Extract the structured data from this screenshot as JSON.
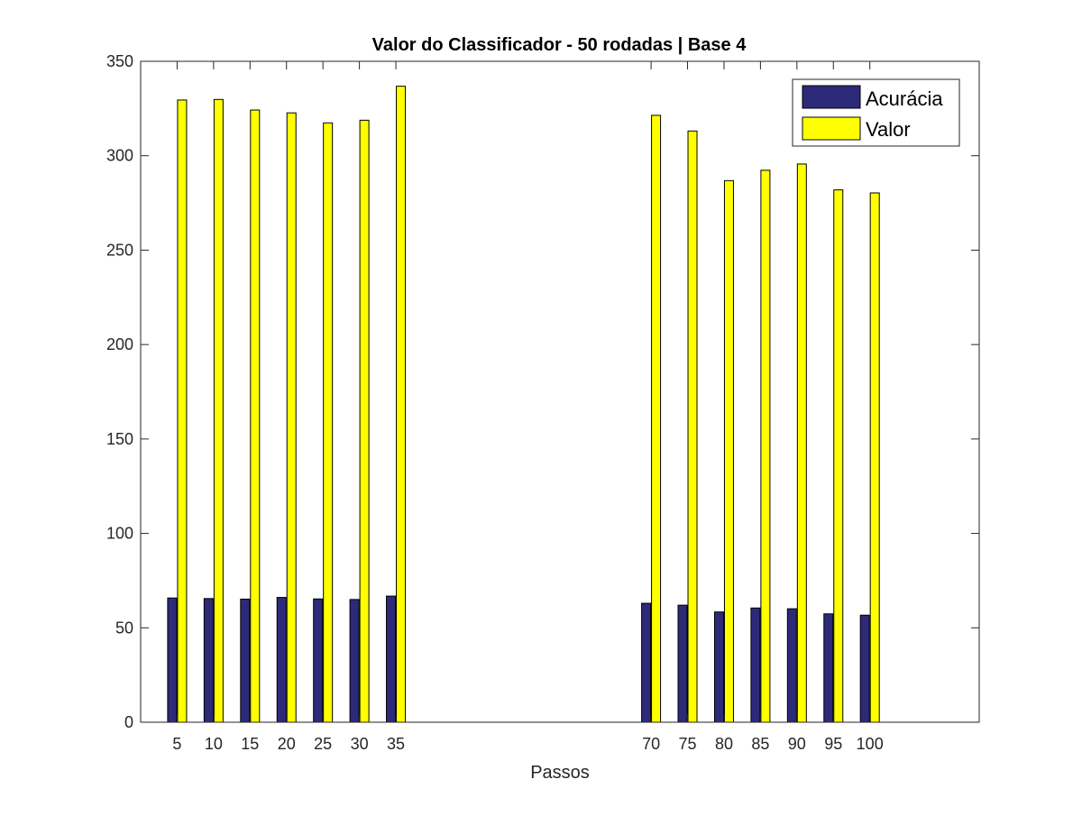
{
  "chart_data": {
    "type": "bar",
    "title": "Valor do Classificador - 50 rodadas | Base 4",
    "xlabel": "Passos",
    "ylabel": "",
    "xlim": [
      0,
      115
    ],
    "ylim": [
      0,
      350
    ],
    "yticks": [
      0,
      50,
      100,
      150,
      200,
      250,
      300,
      350
    ],
    "categories": [
      "5",
      "10",
      "15",
      "20",
      "25",
      "30",
      "35",
      "70",
      "75",
      "80",
      "85",
      "90",
      "95",
      "100"
    ],
    "x": [
      5,
      10,
      15,
      20,
      25,
      30,
      35,
      70,
      75,
      80,
      85,
      90,
      95,
      100
    ],
    "series": [
      {
        "name": "Acurácia",
        "color": "#2e2a7a",
        "values": [
          65.8,
          65.5,
          65.2,
          66.1,
          65.3,
          65.0,
          66.8,
          63.0,
          62.0,
          58.4,
          60.5,
          60.1,
          57.4,
          56.7
        ]
      },
      {
        "name": "Valor",
        "color": "#ffff00",
        "values": [
          329.5,
          329.8,
          324.2,
          322.7,
          317.4,
          318.8,
          336.8,
          321.4,
          313.1,
          286.8,
          292.3,
          295.6,
          281.9,
          280.3
        ]
      }
    ],
    "grid": false,
    "legend_position": "top-right"
  }
}
